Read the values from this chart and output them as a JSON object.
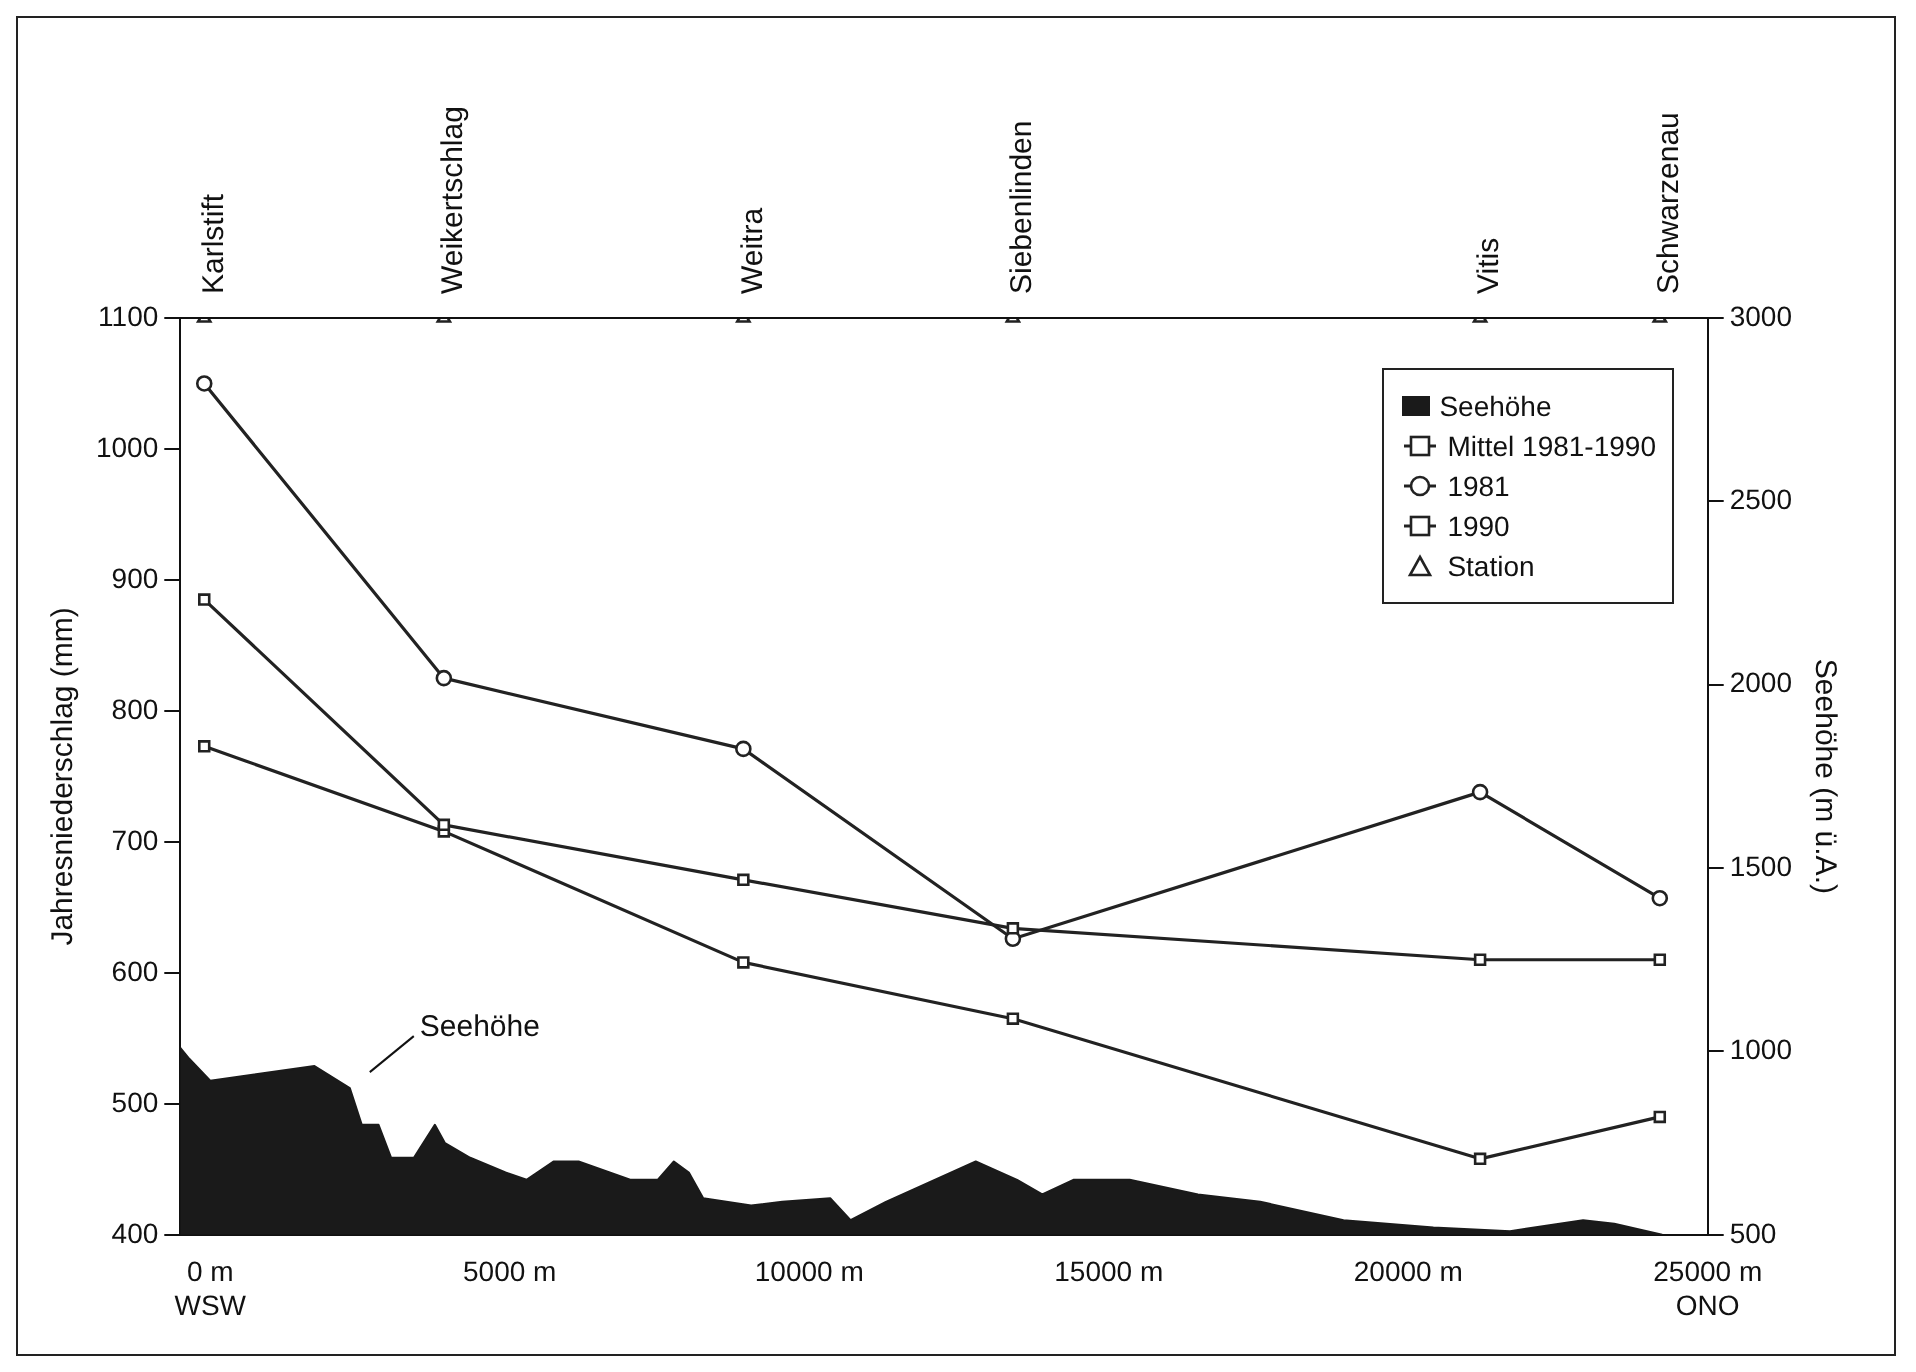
{
  "chart_data": {
    "type": "line",
    "xlim": [
      -500,
      25000
    ],
    "xticks": [
      {
        "value": 0,
        "label": "0 m\nWSW"
      },
      {
        "value": 5000,
        "label": "5000 m"
      },
      {
        "value": 10000,
        "label": "10000 m"
      },
      {
        "value": 15000,
        "label": "15000 m"
      },
      {
        "value": 20000,
        "label": "20000 m"
      },
      {
        "value": 25000,
        "label": "25000 m\nONO"
      }
    ],
    "ylim": [
      400,
      1100
    ],
    "yticks": [
      400,
      500,
      600,
      700,
      800,
      900,
      1000,
      1100
    ],
    "y2lim": [
      500,
      3000
    ],
    "y2ticks": [
      500,
      1000,
      1500,
      2000,
      2500,
      3000
    ],
    "ylabel": "Jahresniederschlag (mm)",
    "y2label": "Seehöhe (m ü.A.)",
    "grid": false,
    "legend": "top right",
    "series": [
      {
        "name": "Seehöhe",
        "type": "area",
        "axis": "y2",
        "color": "#1a1a1a",
        "marker": "none",
        "x": [
          -500,
          -350,
          0,
          1740,
          2330,
          2530,
          2810,
          3020,
          3400,
          3750,
          3920,
          4340,
          4930,
          5280,
          5730,
          6150,
          7010,
          7470,
          7740,
          7990,
          8230,
          9030,
          9550,
          10350,
          10690,
          11280,
          12780,
          13470,
          13890,
          14410,
          15350,
          16490,
          17530,
          18920,
          20420,
          21700,
          22920,
          23440,
          24240
        ],
        "values": [
          1010,
          980,
          920,
          960,
          900,
          800,
          800,
          710,
          710,
          800,
          750,
          710,
          670,
          650,
          700,
          700,
          650,
          650,
          700,
          670,
          600,
          580,
          590,
          600,
          540,
          590,
          700,
          650,
          610,
          650,
          650,
          610,
          590,
          540,
          520,
          510,
          540,
          530,
          500
        ]
      },
      {
        "name": "Mittel 1981-1990",
        "color": "#222222",
        "marker": "square",
        "x": [
          -100,
          3900,
          8900,
          13400,
          21200,
          24200
        ],
        "values": [
          885,
          713,
          671,
          634,
          610,
          610
        ]
      },
      {
        "name": "1981",
        "color": "#222222",
        "marker": "circle",
        "x": [
          -100,
          3900,
          8900,
          13400,
          21200,
          24200
        ],
        "values": [
          1050,
          825,
          771,
          626,
          738,
          657
        ]
      },
      {
        "name": "1990",
        "color": "#222222",
        "marker": "square",
        "x": [
          -100,
          3900,
          8900,
          13400,
          21200,
          24200
        ],
        "values": [
          773,
          708,
          608,
          565,
          458,
          490
        ]
      },
      {
        "name": "Station",
        "type": "scatter",
        "color": "#222222",
        "marker": "triangle",
        "x": [
          -100,
          3900,
          8900,
          13400,
          21200,
          24200
        ],
        "values": [
          1100,
          1100,
          1100,
          1100,
          1100,
          1100
        ]
      }
    ],
    "annotations": [
      {
        "text": "Karlstift",
        "x": -100,
        "y": 1100
      },
      {
        "text": "Weikertschlag",
        "x": 3900,
        "y": 1100
      },
      {
        "text": "Weitra",
        "x": 8900,
        "y": 1100
      },
      {
        "text": "Siebenlinden",
        "x": 13400,
        "y": 1100
      },
      {
        "text": "Vitis",
        "x": 21200,
        "y": 1100
      },
      {
        "text": "Schwarzenau",
        "x": 24200,
        "y": 1100
      },
      "Seehöhe"
    ]
  }
}
